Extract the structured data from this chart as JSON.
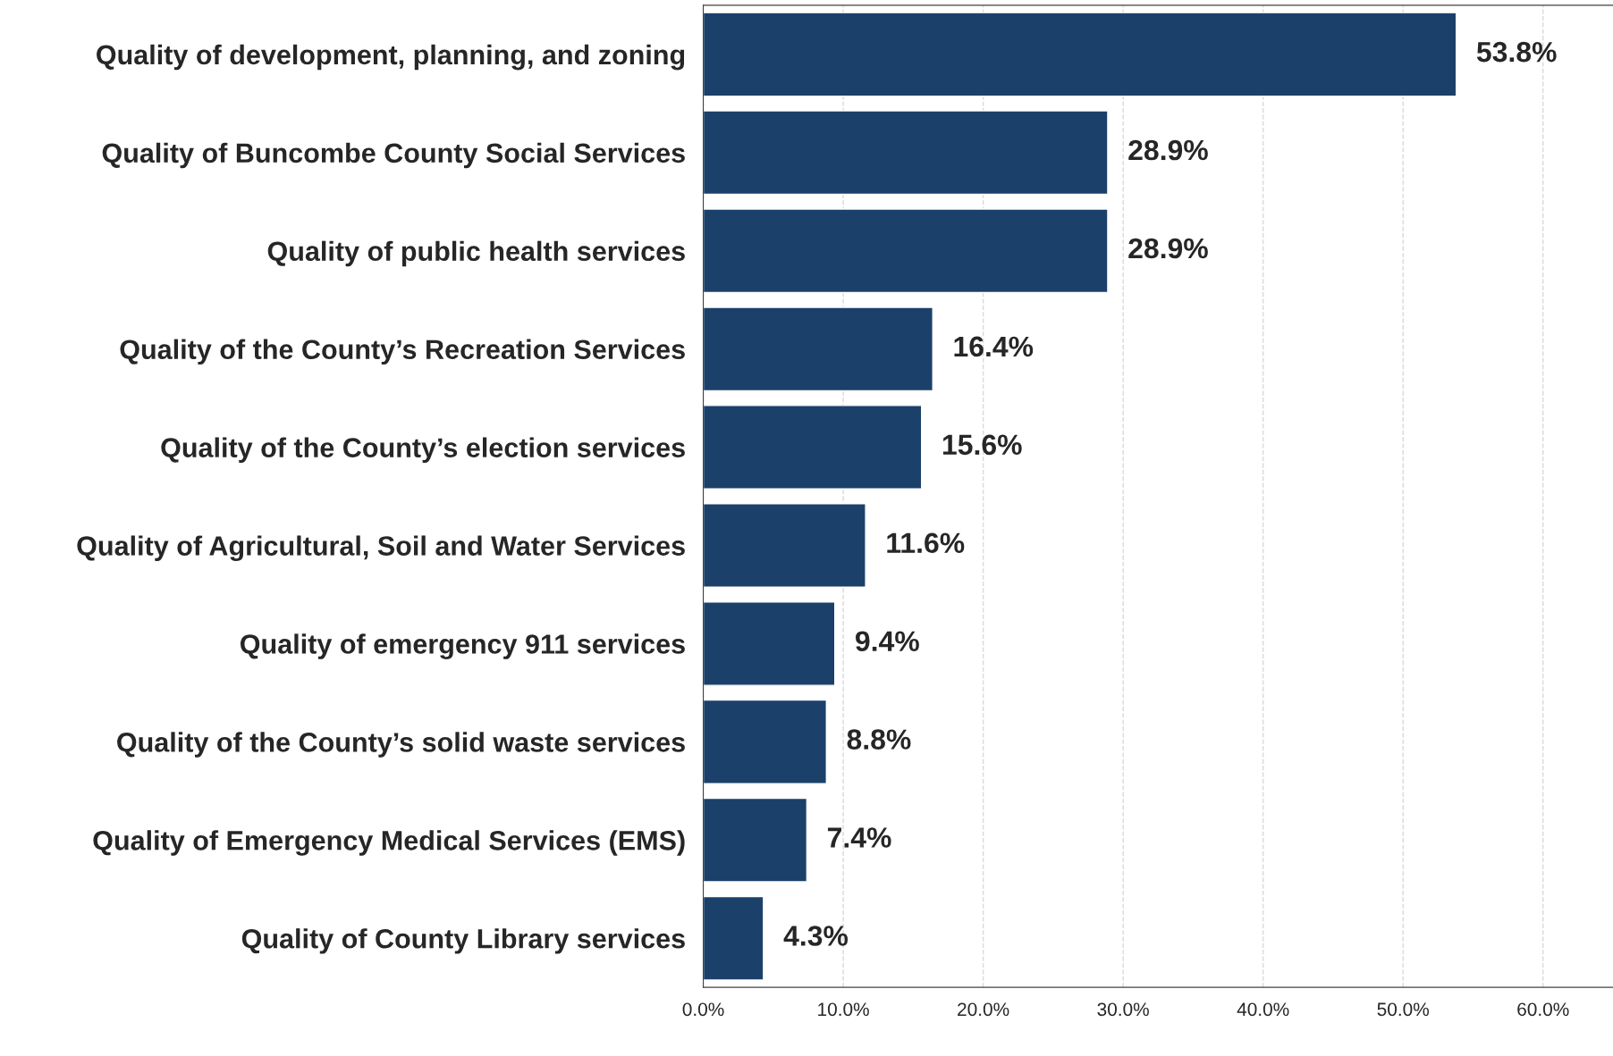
{
  "chart_data": {
    "type": "bar",
    "orientation": "horizontal",
    "categories": [
      "Quality of development, planning, and zoning",
      "Quality of Buncombe County Social Services",
      "Quality of public health services",
      "Quality of the County’s Recreation Services",
      "Quality of the County’s election services",
      "Quality of Agricultural, Soil and Water Services",
      "Quality of emergency 911 services",
      "Quality of the County’s solid waste services",
      "Quality of Emergency Medical Services (EMS)",
      "Quality of County Library services"
    ],
    "values": [
      53.8,
      28.9,
      28.9,
      16.4,
      15.6,
      11.6,
      9.4,
      8.8,
      7.4,
      4.3
    ],
    "value_labels": [
      "53.8%",
      "28.9%",
      "28.9%",
      "16.4%",
      "15.6%",
      "11.6%",
      "9.4%",
      "8.8%",
      "7.4%",
      "4.3%"
    ],
    "color": "#1b406a",
    "xlim": [
      0,
      65
    ],
    "xticks": [
      {
        "value": 0,
        "label": "0.0%"
      },
      {
        "value": 10,
        "label": "10.0%"
      },
      {
        "value": 20,
        "label": "20.0%"
      },
      {
        "value": 30,
        "label": "30.0%"
      },
      {
        "value": 40,
        "label": "40.0%"
      },
      {
        "value": 50,
        "label": "50.0%"
      },
      {
        "value": 60,
        "label": "60.0%"
      }
    ],
    "grid": "x",
    "legend": false
  }
}
